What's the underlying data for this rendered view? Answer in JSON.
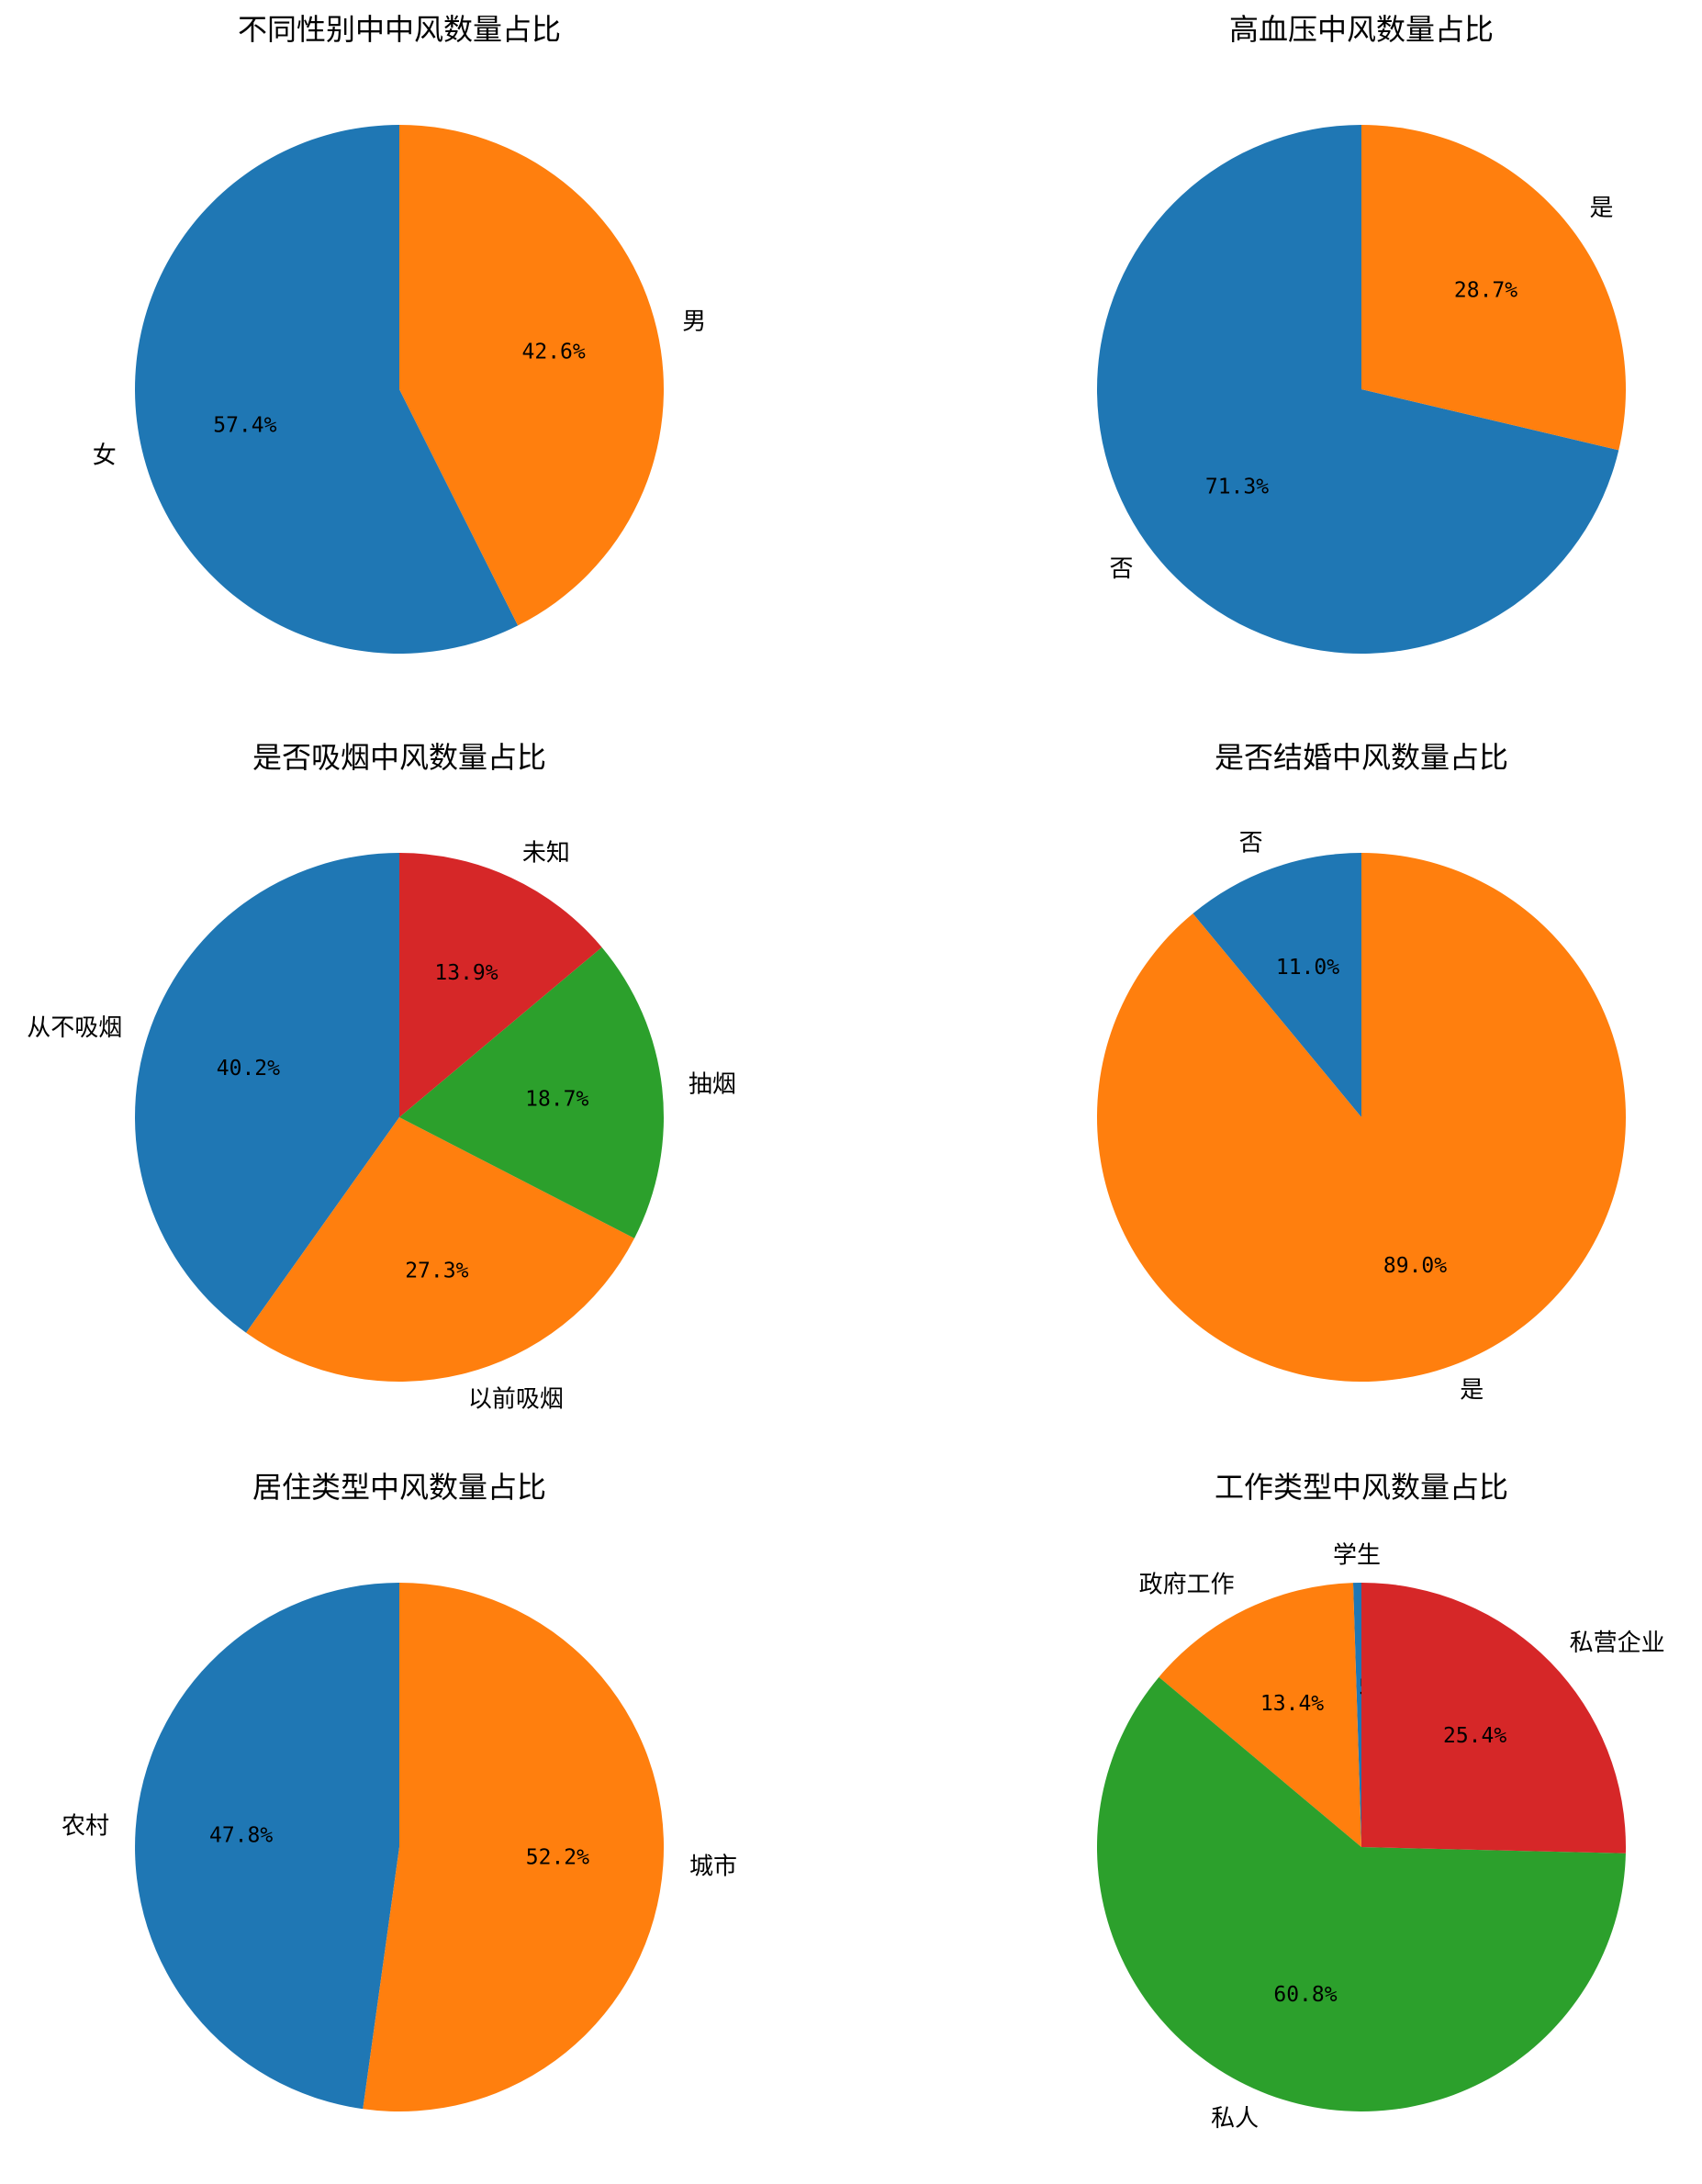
{
  "chart_data": [
    {
      "type": "pie",
      "title": "不同性别中中风数量占比",
      "categories": [
        "女",
        "男"
      ],
      "values": [
        57.4,
        42.6
      ],
      "value_labels": [
        "57.4%",
        "42.6%"
      ],
      "colors": [
        "#1f77b4",
        "#ff7f0e"
      ]
    },
    {
      "type": "pie",
      "title": "高血压中风数量占比",
      "categories": [
        "否",
        "是"
      ],
      "values": [
        71.3,
        28.7
      ],
      "value_labels": [
        "71.3%",
        "28.7%"
      ],
      "colors": [
        "#1f77b4",
        "#ff7f0e"
      ]
    },
    {
      "type": "pie",
      "title": "是否吸烟中风数量占比",
      "categories": [
        "从不吸烟",
        "以前吸烟",
        "抽烟",
        "未知"
      ],
      "values": [
        40.2,
        27.3,
        18.7,
        13.9
      ],
      "value_labels": [
        "40.2%",
        "27.3%",
        "18.7%",
        "13.9%"
      ],
      "colors": [
        "#1f77b4",
        "#ff7f0e",
        "#2ca02c",
        "#d62728"
      ]
    },
    {
      "type": "pie",
      "title": "是否结婚中风数量占比",
      "categories": [
        "否",
        "是"
      ],
      "values": [
        11.0,
        89.0
      ],
      "value_labels": [
        "11.0%",
        "89.0%"
      ],
      "colors": [
        "#1f77b4",
        "#ff7f0e"
      ]
    },
    {
      "type": "pie",
      "title": "居住类型中风数量占比",
      "categories": [
        "农村",
        "城市"
      ],
      "values": [
        47.8,
        52.2
      ],
      "value_labels": [
        "47.8%",
        "52.2%"
      ],
      "colors": [
        "#1f77b4",
        "#ff7f0e"
      ]
    },
    {
      "type": "pie",
      "title": "工作类型中风数量占比",
      "categories": [
        "学生",
        "政府工作",
        "私人",
        "私营企业"
      ],
      "values": [
        0.5,
        13.4,
        60.8,
        25.4
      ],
      "value_labels": [
        "0.5%",
        "13.4%",
        "60.8%",
        "25.4%"
      ],
      "colors": [
        "#1f77b4",
        "#ff7f0e",
        "#2ca02c",
        "#d62728"
      ]
    }
  ]
}
